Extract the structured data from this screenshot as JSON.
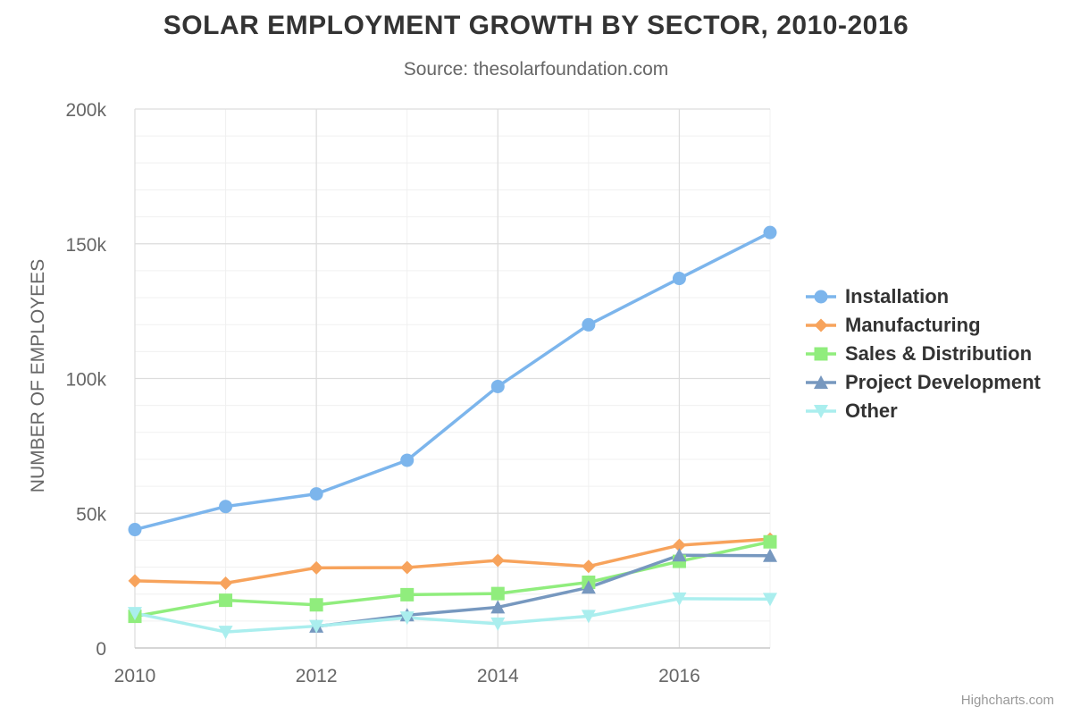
{
  "chart_data": {
    "type": "line",
    "title": "SOLAR EMPLOYMENT GROWTH BY SECTOR, 2010-2016",
    "subtitle": "Source: thesolarfoundation.com",
    "xlabel": "",
    "ylabel": "NUMBER OF EMPLOYEES",
    "x": [
      2010,
      2011,
      2012,
      2013,
      2014,
      2015,
      2016,
      2017
    ],
    "xlim": [
      2010,
      2017
    ],
    "ylim": [
      0,
      200000
    ],
    "x_ticks": [
      "2010",
      "2012",
      "2014",
      "2016"
    ],
    "y_ticks": [
      "0",
      "50k",
      "100k",
      "150k",
      "200k"
    ],
    "grid": true,
    "legend_position": "right",
    "series": [
      {
        "name": "Installation",
        "color": "#7cb5ec",
        "marker": "circle",
        "values": [
          43934,
          52503,
          57177,
          69658,
          97031,
          119931,
          137133,
          154175
        ]
      },
      {
        "name": "Manufacturing",
        "color": "#f7a35c",
        "marker": "diamond",
        "values": [
          24916,
          24064,
          29742,
          29851,
          32490,
          30282,
          38121,
          40434
        ]
      },
      {
        "name": "Sales & Distribution",
        "color": "#90ed7d",
        "marker": "square",
        "values": [
          11744,
          17722,
          16005,
          19771,
          20185,
          24377,
          32147,
          39387
        ]
      },
      {
        "name": "Project Development",
        "color": "#7798bf",
        "marker": "triangle",
        "values": [
          null,
          null,
          7988,
          12169,
          15112,
          22452,
          34400,
          34227
        ]
      },
      {
        "name": "Other",
        "color": "#aaeeee",
        "marker": "triangle-down",
        "values": [
          12908,
          5948,
          8105,
          11248,
          8989,
          11816,
          18274,
          18111
        ]
      }
    ],
    "annotations": [
      {
        "text": "Installation",
        "series": 0
      },
      {
        "text": "Manufacturing",
        "series": 1
      },
      {
        "text": "Sales & Distribution",
        "series": 2
      },
      {
        "text": "Other",
        "series": 4
      }
    ]
  },
  "credits": "Highcharts.com"
}
